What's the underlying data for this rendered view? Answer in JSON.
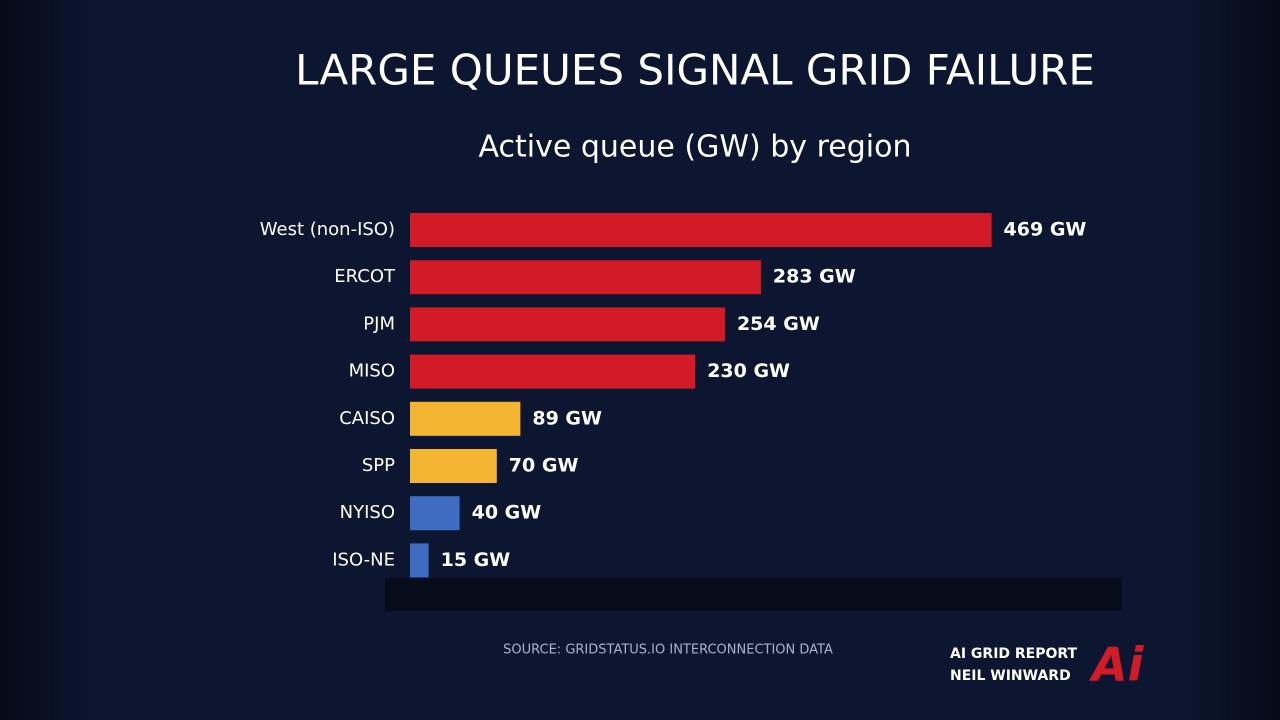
{
  "chart_data": {
    "type": "hbar",
    "title": "LARGE QUEUES SIGNAL GRID FAILURE",
    "subtitle": "Active queue (GW) by region",
    "categories": [
      "West (non-ISO)",
      "ERCOT",
      "PJM",
      "MISO",
      "CAISO",
      "SPP",
      "NYISO",
      "ISO-NE"
    ],
    "values": [
      469,
      283,
      254,
      230,
      89,
      70,
      40,
      15
    ],
    "value_labels": [
      "469 GW",
      "283 GW",
      "254 GW",
      "230 GW",
      "89 GW",
      "70 GW",
      "40 GW",
      "15 GW"
    ],
    "colors": [
      "#d31a27",
      "#d31a27",
      "#d31a27",
      "#d31a27",
      "#f4b630",
      "#f4b630",
      "#3d6cc0",
      "#3d6cc0"
    ],
    "xlim": [
      0,
      500
    ]
  },
  "footer": {
    "source": "SOURCE: GRIDSTATUS.IO INTERCONNECTION DATA",
    "brand_line1": "AI GRID REPORT",
    "brand_line2": "NEIL WINWARD",
    "logo": "Ai"
  }
}
